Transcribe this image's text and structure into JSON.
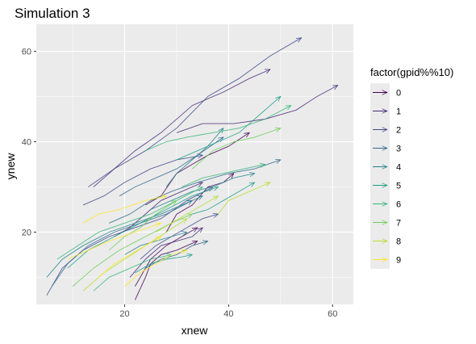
{
  "chart_data": {
    "type": "line",
    "title": "Simulation 3",
    "xlabel": "xnew",
    "ylabel": "ynew",
    "xlim": [
      3,
      64
    ],
    "ylim": [
      4,
      66
    ],
    "xticks": [
      20,
      40,
      60
    ],
    "yticks": [
      20,
      40,
      60
    ],
    "grid": true,
    "panel_background": "#ebebeb",
    "grid_color": "#ffffff",
    "legend": {
      "title": "factor(gpid%%10)",
      "placement": "right",
      "entries": [
        "0",
        "1",
        "2",
        "3",
        "4",
        "5",
        "6",
        "7",
        "8",
        "9"
      ],
      "colors": [
        "#440154",
        "#482878",
        "#3e4989",
        "#31688e",
        "#26828e",
        "#1f9e89",
        "#35b779",
        "#6ece58",
        "#b5de2b",
        "#fde725"
      ]
    },
    "series": [
      {
        "color": "#440154",
        "x": [
          22,
          24,
          25,
          27,
          30,
          34
        ],
        "y": [
          5,
          10,
          13,
          15,
          16,
          18
        ]
      },
      {
        "color": "#440154",
        "x": [
          24,
          27,
          30,
          33,
          36,
          40,
          44
        ],
        "y": [
          26,
          28,
          33,
          35,
          37,
          39,
          42
        ]
      },
      {
        "color": "#440154",
        "x": [
          22,
          25,
          28,
          31,
          34
        ],
        "y": [
          8,
          14,
          17,
          19,
          21
        ]
      },
      {
        "color": "#440154",
        "x": [
          28,
          30,
          33,
          36,
          39,
          41
        ],
        "y": [
          20,
          24,
          26,
          30,
          31,
          33
        ]
      },
      {
        "color": "#482878",
        "x": [
          14,
          18,
          22,
          27,
          33,
          39,
          44,
          48
        ],
        "y": [
          30,
          34,
          38,
          42,
          48,
          51,
          54,
          56
        ]
      },
      {
        "color": "#482878",
        "x": [
          30,
          35,
          41,
          47,
          53,
          57,
          61
        ],
        "y": [
          42,
          44,
          44,
          45,
          47,
          50,
          52.5
        ]
      },
      {
        "color": "#482878",
        "x": [
          18,
          21,
          24,
          27,
          31,
          35
        ],
        "y": [
          19,
          21,
          24,
          27,
          29,
          31
        ]
      },
      {
        "color": "#482878",
        "x": [
          21,
          24,
          27,
          30,
          33,
          35
        ],
        "y": [
          10,
          14,
          17,
          18,
          19,
          21
        ]
      },
      {
        "color": "#3e4989",
        "x": [
          13,
          18,
          24,
          30,
          36,
          42,
          48,
          54
        ],
        "y": [
          30,
          34,
          38,
          43,
          50,
          54,
          59,
          63
        ]
      },
      {
        "color": "#3e4989",
        "x": [
          5,
          8,
          12,
          17,
          22,
          27,
          32,
          37
        ],
        "y": [
          6,
          12,
          16,
          19,
          21,
          23,
          27,
          30
        ]
      },
      {
        "color": "#3e4989",
        "x": [
          12,
          16,
          20,
          25,
          30,
          35
        ],
        "y": [
          26,
          28,
          31,
          34,
          36,
          37
        ]
      },
      {
        "color": "#3e4989",
        "x": [
          23,
          26,
          29,
          32,
          35,
          38
        ],
        "y": [
          14,
          17,
          19,
          21,
          23,
          24
        ]
      },
      {
        "color": "#31688e",
        "x": [
          6,
          9,
          13,
          18,
          23,
          28,
          33
        ],
        "y": [
          8,
          13,
          17,
          20,
          22,
          24,
          27
        ]
      },
      {
        "color": "#31688e",
        "x": [
          17,
          21,
          25,
          29,
          34,
          40,
          45,
          50
        ],
        "y": [
          22,
          24,
          27,
          29,
          31,
          33,
          34,
          36
        ]
      },
      {
        "color": "#31688e",
        "x": [
          24,
          27,
          30,
          33,
          36
        ],
        "y": [
          12,
          14,
          15,
          17,
          18
        ]
      },
      {
        "color": "#31688e",
        "x": [
          19,
          22,
          26,
          30,
          34,
          39
        ],
        "y": [
          28,
          30,
          32,
          34,
          37,
          41
        ]
      },
      {
        "color": "#26828e",
        "x": [
          5,
          8,
          12,
          17,
          22,
          27,
          31,
          35
        ],
        "y": [
          10,
          14,
          17,
          20,
          22,
          24,
          26,
          28
        ]
      },
      {
        "color": "#26828e",
        "x": [
          25,
          29,
          33,
          37,
          41,
          45
        ],
        "y": [
          25,
          27,
          29,
          30,
          32,
          33
        ]
      },
      {
        "color": "#26828e",
        "x": [
          28,
          30,
          33,
          36,
          39
        ],
        "y": [
          30,
          33,
          36,
          39,
          43
        ]
      },
      {
        "color": "#26828e",
        "x": [
          20,
          23,
          26,
          29,
          32
        ],
        "y": [
          15,
          17,
          18,
          19,
          20
        ]
      },
      {
        "color": "#1f9e89",
        "x": [
          9,
          13,
          18,
          23,
          28,
          33,
          38
        ],
        "y": [
          12,
          16,
          19,
          22,
          25,
          28,
          30
        ]
      },
      {
        "color": "#1f9e89",
        "x": [
          30,
          34,
          38,
          42,
          46,
          50
        ],
        "y": [
          36,
          38,
          40,
          42,
          46,
          50
        ]
      },
      {
        "color": "#1f9e89",
        "x": [
          22,
          25,
          28,
          31,
          33
        ],
        "y": [
          11,
          13,
          14,
          14.5,
          15
        ]
      },
      {
        "color": "#1f9e89",
        "x": [
          33,
          36,
          39,
          42,
          45
        ],
        "y": [
          24,
          25,
          27,
          29,
          31
        ]
      },
      {
        "color": "#35b779",
        "x": [
          7,
          11,
          15,
          20,
          25,
          30,
          35
        ],
        "y": [
          14,
          17,
          20,
          22,
          24,
          27,
          30
        ]
      },
      {
        "color": "#35b779",
        "x": [
          14,
          17,
          21,
          25,
          29
        ],
        "y": [
          7,
          10,
          12,
          14,
          15
        ]
      },
      {
        "color": "#35b779",
        "x": [
          31,
          35,
          39,
          43,
          47
        ],
        "y": [
          30,
          32,
          33,
          34,
          35
        ]
      },
      {
        "color": "#35b779",
        "x": [
          24,
          28,
          32,
          37,
          42,
          47,
          52
        ],
        "y": [
          38,
          40,
          41,
          42,
          43,
          45,
          48
        ]
      },
      {
        "color": "#6ece58",
        "x": [
          10,
          14,
          19,
          24,
          29,
          33
        ],
        "y": [
          8,
          12,
          16,
          19,
          22,
          24
        ]
      },
      {
        "color": "#6ece58",
        "x": [
          33,
          37,
          41,
          45,
          50
        ],
        "y": [
          34,
          38,
          40,
          41,
          43
        ]
      },
      {
        "color": "#6ece58",
        "x": [
          17,
          20,
          23,
          26,
          30
        ],
        "y": [
          16,
          19,
          21,
          24,
          27
        ]
      },
      {
        "color": "#b5de2b",
        "x": [
          12,
          16,
          20,
          24,
          28,
          32
        ],
        "y": [
          7,
          11,
          14,
          17,
          20,
          23
        ]
      },
      {
        "color": "#b5de2b",
        "x": [
          38,
          40,
          42,
          44,
          46,
          48
        ],
        "y": [
          24,
          27,
          28,
          29,
          30,
          31
        ]
      },
      {
        "color": "#b5de2b",
        "x": [
          26,
          29,
          32,
          35,
          38
        ],
        "y": [
          20,
          22,
          24,
          26,
          28
        ]
      },
      {
        "color": "#fde725",
        "x": [
          15,
          18,
          21,
          24,
          27
        ],
        "y": [
          10,
          13,
          15,
          17,
          19
        ]
      },
      {
        "color": "#fde725",
        "x": [
          9,
          13,
          17,
          22,
          27
        ],
        "y": [
          14,
          16,
          18,
          20,
          22
        ]
      },
      {
        "color": "#fde725",
        "x": [
          20,
          23,
          26,
          29,
          32
        ],
        "y": [
          8,
          11,
          13,
          15,
          16
        ]
      },
      {
        "color": "#fde725",
        "x": [
          12,
          15,
          19,
          24,
          28
        ],
        "y": [
          22,
          24,
          25,
          27,
          28
        ]
      }
    ]
  }
}
